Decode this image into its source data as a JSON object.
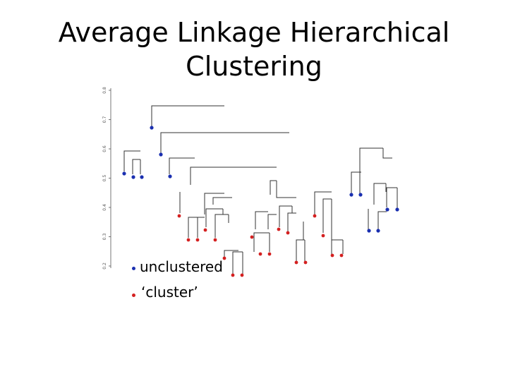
{
  "title": {
    "line1": "Average Linkage Hierarchical",
    "line2": "Clustering"
  },
  "legend": {
    "unclustered": "unclustered",
    "cluster": "‘cluster’"
  },
  "colors": {
    "unclustered": "#1a2fb0",
    "cluster": "#d42020",
    "lines": "#333333"
  },
  "axis": {
    "tick_labels": [
      "0.8",
      "0.7",
      "0.6",
      "0.5",
      "0.4",
      "0.3",
      "0.2"
    ]
  }
}
